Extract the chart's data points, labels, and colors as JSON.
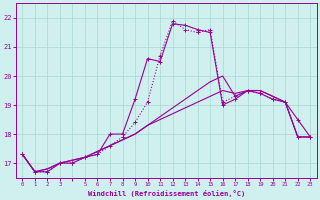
{
  "background_color": "#cff0ee",
  "grid_color": "#a8d8d0",
  "line_color": "#990099",
  "xlabel": "Windchill (Refroidissement éolien,°C)",
  "xlim": [
    -0.5,
    23.5
  ],
  "ylim": [
    16.5,
    22.5
  ],
  "yticks": [
    17,
    18,
    19,
    20,
    21,
    22
  ],
  "xticks": [
    0,
    1,
    2,
    3,
    4,
    5,
    6,
    7,
    8,
    9,
    10,
    11,
    12,
    13,
    14,
    15,
    16,
    17,
    18,
    19,
    20,
    21,
    22,
    23
  ],
  "xtick_labels": [
    "0",
    "1",
    "2",
    "3",
    "",
    "5",
    "6",
    "7",
    "8",
    "9",
    "10",
    "11",
    "12",
    "13",
    "14",
    "15",
    "16",
    "17",
    "18",
    "19",
    "20",
    "21",
    "22",
    "23"
  ],
  "series1_x": [
    0,
    1,
    2,
    3,
    4,
    5,
    6,
    7,
    8,
    9,
    10,
    11,
    12,
    13,
    14,
    15,
    16,
    17,
    18,
    19,
    20,
    21,
    22,
    23
  ],
  "series1_y": [
    17.3,
    16.7,
    16.7,
    17.0,
    17.0,
    17.2,
    17.3,
    18.0,
    18.0,
    19.2,
    20.6,
    20.5,
    21.8,
    21.75,
    21.6,
    21.5,
    19.0,
    19.2,
    19.5,
    19.4,
    19.2,
    19.1,
    18.5,
    17.9
  ],
  "series2_x": [
    0,
    1,
    2,
    3,
    4,
    5,
    6,
    7,
    8,
    9,
    10,
    11,
    12,
    13,
    14,
    15,
    16,
    17,
    18,
    19,
    20,
    21,
    22,
    23
  ],
  "series2_y": [
    17.3,
    16.7,
    16.7,
    17.0,
    17.0,
    17.2,
    17.3,
    17.6,
    17.9,
    18.4,
    19.1,
    20.7,
    21.9,
    21.6,
    21.5,
    21.6,
    19.1,
    19.3,
    19.5,
    19.4,
    19.2,
    19.1,
    17.9,
    17.9
  ],
  "series3_x": [
    0,
    1,
    2,
    3,
    4,
    5,
    6,
    7,
    8,
    9,
    10,
    11,
    12,
    13,
    14,
    15,
    16,
    17,
    18,
    19,
    20,
    21,
    22,
    23
  ],
  "series3_y": [
    17.3,
    16.7,
    16.8,
    17.0,
    17.1,
    17.2,
    17.4,
    17.6,
    17.8,
    18.0,
    18.3,
    18.6,
    18.9,
    19.2,
    19.5,
    19.8,
    20.0,
    19.3,
    19.5,
    19.5,
    19.3,
    19.1,
    17.9,
    17.9
  ],
  "series4_x": [
    0,
    1,
    2,
    3,
    4,
    5,
    6,
    7,
    8,
    9,
    10,
    11,
    12,
    13,
    14,
    15,
    16,
    17,
    18,
    19,
    20,
    21,
    22,
    23
  ],
  "series4_y": [
    17.3,
    16.7,
    16.8,
    17.0,
    17.1,
    17.2,
    17.4,
    17.6,
    17.8,
    18.0,
    18.3,
    18.5,
    18.7,
    18.9,
    19.1,
    19.3,
    19.5,
    19.4,
    19.5,
    19.5,
    19.3,
    19.1,
    17.9,
    17.9
  ]
}
